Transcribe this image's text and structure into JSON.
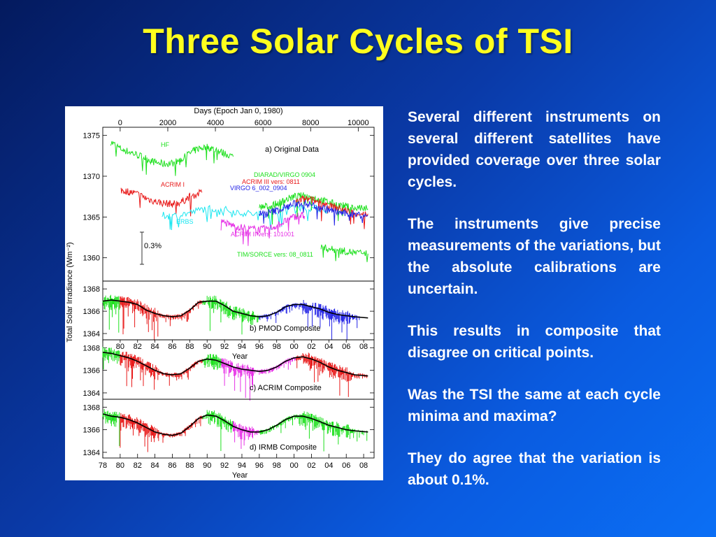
{
  "slide": {
    "title": "Three Solar Cycles of TSI",
    "bullets": [
      "Several different instruments on several different satellites have provided coverage over three solar cycles.",
      "The instruments give precise measurements of the variations, but the absolute calibrations are uncertain.",
      "This results in composite that disagree on critical points.",
      "Was the TSI the same at each cycle minima and maxima?",
      "They do agree that the variation is about 0.1%."
    ]
  },
  "chart_data": {
    "type": "line",
    "top_axis": {
      "label": "Days (Epoch Jan 0, 1980)",
      "ticks": [
        "0",
        "2000",
        "4000",
        "6000",
        "8000",
        "10000"
      ]
    },
    "ylabel": "Total Solar Irradiance (Wm⁻²)",
    "xlabel": "Year",
    "year_ticks": [
      "78",
      "80",
      "82",
      "84",
      "86",
      "88",
      "90",
      "92",
      "94",
      "96",
      "98",
      "00",
      "02",
      "04",
      "06",
      "08"
    ],
    "panels": [
      {
        "title": "a) Original Data",
        "ylim": [
          1358,
          1376
        ],
        "yticks": [
          "1375",
          "1370",
          "1365",
          "1360"
        ],
        "scale_bar": "0.3%",
        "series": [
          {
            "name": "HF",
            "color": "#1ee01e",
            "x": [
              78.9,
              80,
              81,
              82,
              83,
              84,
              85,
              86,
              87,
              88,
              89,
              90,
              91,
              92,
              93
            ],
            "y": [
              1374.2,
              1373.4,
              1373,
              1372.6,
              1372.2,
              1371.7,
              1371.5,
              1371.6,
              1372,
              1372.8,
              1373.4,
              1373.6,
              1373.2,
              1372.8,
              1372.4
            ]
          },
          {
            "name": "ACRIM I",
            "color": "#e81a1a",
            "x": [
              80.1,
              81,
              82,
              83,
              84,
              85,
              86,
              87,
              88,
              89.4
            ],
            "y": [
              1368.3,
              1368.1,
              1367.8,
              1367.3,
              1366.9,
              1366.7,
              1366.6,
              1366.8,
              1367.5,
              1368
            ]
          },
          {
            "name": "ERBS",
            "color": "#19e6f0",
            "x": [
              84.8,
              86,
              88,
              90,
              92,
              94,
              96,
              98,
              100,
              102,
              104
            ],
            "y": [
              1365.2,
              1365.1,
              1365.5,
              1366.1,
              1365.9,
              1365.5,
              1365.3,
              1365.6,
              1366.2,
              1366.1,
              1365.8
            ]
          },
          {
            "name": "ACRIM II vers: 101001",
            "color": "#e632e6",
            "x": [
              91.6,
              92.5,
              93.5,
              94.5,
              95.5,
              96.5,
              97.5,
              98.5,
              99.5,
              100.5,
              101.2
            ],
            "y": [
              1364.4,
              1364.1,
              1363.8,
              1363.6,
              1363.5,
              1363.5,
              1363.7,
              1364.2,
              1364.8,
              1365.2,
              1365.1
            ]
          },
          {
            "name": "DIARAD/VIRGO 0904",
            "color": "#1ee01e",
            "x": [
              96,
              97,
              98,
              99,
              100,
              101,
              102,
              103,
              104,
              105,
              106,
              107,
              108.5
            ],
            "y": [
              1366.2,
              1366.3,
              1366.6,
              1367.1,
              1367.5,
              1367.6,
              1367.4,
              1367.1,
              1366.8,
              1366.5,
              1366.3,
              1366.1,
              1366
            ]
          },
          {
            "name": "ACRIM III vers: 0811",
            "color": "#e81a1a",
            "x": [
              100.2,
              101,
              102,
              103,
              104,
              105,
              106,
              107,
              108.5
            ],
            "y": [
              1366.8,
              1367.2,
              1367.1,
              1366.8,
              1366.4,
              1366.1,
              1365.8,
              1365.5,
              1365.4
            ]
          },
          {
            "name": "VIRGO 6_002_0904",
            "color": "#2323e6",
            "x": [
              96,
              97,
              98,
              99,
              100,
              101,
              102,
              103,
              104,
              105,
              106,
              107,
              108.5
            ],
            "y": [
              1365.4,
              1365.5,
              1365.8,
              1366.2,
              1366.6,
              1366.7,
              1366.5,
              1366.2,
              1365.9,
              1365.6,
              1365.4,
              1365.3,
              1365.2
            ]
          },
          {
            "name": "TIM/SORCE vers: 08_0811",
            "color": "#1ee01e",
            "x": [
              103.1,
              104,
              105,
              106,
              107,
              108.5
            ],
            "y": [
              1361.3,
              1361.1,
              1360.9,
              1360.8,
              1360.6,
              1360.5
            ]
          }
        ]
      },
      {
        "title": "b) PMOD Composite",
        "ylim": [
          1363.5,
          1368.7
        ],
        "yticks": [
          "1368",
          "1366",
          "1364"
        ],
        "x": [
          78,
          79,
          80,
          81,
          82,
          83,
          84,
          85,
          86,
          87,
          88,
          89,
          90,
          91,
          92,
          93,
          94,
          95,
          96,
          97,
          98,
          99,
          100,
          101,
          102,
          103,
          104,
          105,
          106,
          107,
          108.5
        ],
        "y": [
          1366.9,
          1367.0,
          1366.9,
          1366.8,
          1366.6,
          1366.1,
          1365.8,
          1365.6,
          1365.5,
          1365.6,
          1366.1,
          1366.8,
          1366.9,
          1366.9,
          1366.5,
          1366.0,
          1365.8,
          1365.6,
          1365.5,
          1365.6,
          1365.9,
          1366.4,
          1366.6,
          1366.6,
          1366.4,
          1366.2,
          1365.9,
          1365.7,
          1365.6,
          1365.5,
          1365.4
        ]
      },
      {
        "title": "c) ACRIM Composite",
        "ylim": [
          1363.5,
          1368.7
        ],
        "yticks": [
          "1368",
          "1366",
          "1364"
        ],
        "x": [
          78,
          79,
          80,
          81,
          82,
          83,
          84,
          85,
          86,
          87,
          88,
          89,
          90,
          91,
          92,
          93,
          94,
          95,
          96,
          97,
          98,
          99,
          100,
          101,
          102,
          103,
          104,
          105,
          106,
          107,
          108.5
        ],
        "y": [
          1367.6,
          1367.5,
          1367.3,
          1367.1,
          1366.8,
          1366.4,
          1366.0,
          1365.7,
          1365.6,
          1365.7,
          1366.2,
          1366.8,
          1367.0,
          1366.9,
          1366.6,
          1366.3,
          1366.1,
          1366.0,
          1365.9,
          1366.0,
          1366.3,
          1366.8,
          1367.1,
          1367.2,
          1367.0,
          1366.7,
          1366.3,
          1366.0,
          1365.8,
          1365.6,
          1365.5
        ]
      },
      {
        "title": "d) IRMB Composite",
        "ylim": [
          1363.5,
          1368.7
        ],
        "yticks": [
          "1368",
          "1366",
          "1364"
        ],
        "x": [
          78,
          79,
          80,
          81,
          82,
          83,
          84,
          85,
          86,
          87,
          88,
          89,
          90,
          91,
          92,
          93,
          94,
          95,
          96,
          97,
          98,
          99,
          100,
          101,
          102,
          103,
          104,
          105,
          106,
          107,
          108.5
        ],
        "y": [
          1367.4,
          1367.2,
          1367.1,
          1366.9,
          1366.6,
          1366.2,
          1365.8,
          1365.6,
          1365.5,
          1365.7,
          1366.3,
          1367.0,
          1367.3,
          1367.2,
          1366.8,
          1366.3,
          1366.0,
          1365.8,
          1365.8,
          1366.0,
          1366.4,
          1366.9,
          1367.2,
          1367.2,
          1367.0,
          1366.7,
          1366.4,
          1366.2,
          1366.0,
          1365.9,
          1365.8
        ]
      }
    ]
  }
}
